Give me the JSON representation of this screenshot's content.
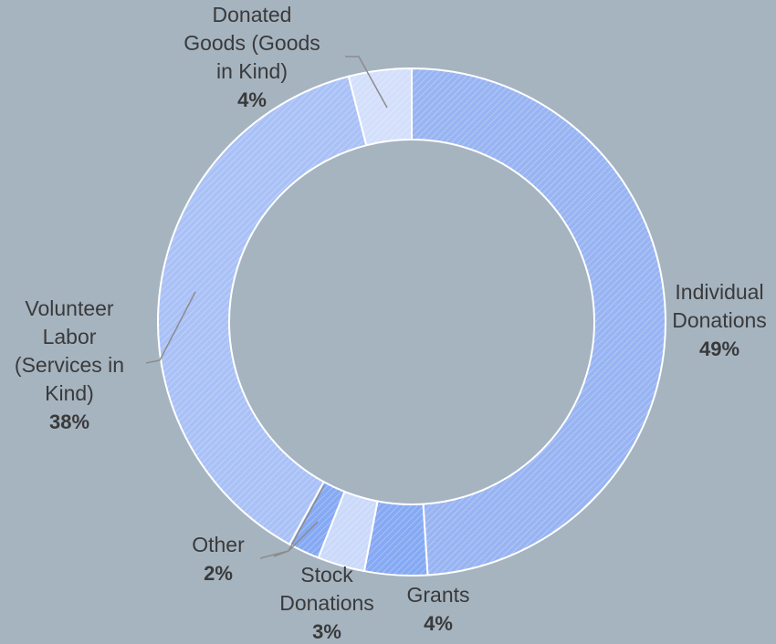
{
  "chart_data": {
    "type": "pie",
    "subtype": "donut",
    "title": "",
    "legend": "none",
    "slices": [
      {
        "label": [
          "Individual",
          "Donations"
        ],
        "percent_label": "49%",
        "value": 49,
        "color": "#98b4f2"
      },
      {
        "label": [
          "Grants"
        ],
        "percent_label": "4%",
        "value": 4,
        "color": "#86a9f4"
      },
      {
        "label": [
          "Stock",
          "Donations"
        ],
        "percent_label": "3%",
        "value": 3,
        "color": "#cbd9fa"
      },
      {
        "label": [
          "Other"
        ],
        "percent_label": "2%",
        "value": 2,
        "color": "#86a9f4"
      },
      {
        "label": [
          "Volunteer",
          "Labor",
          "(Services in",
          "Kind)"
        ],
        "percent_label": "38%",
        "value": 38,
        "color": "#a9c1f6"
      },
      {
        "label": [
          "Donated",
          "Goods (Goods",
          "in Kind)"
        ],
        "percent_label": "4%",
        "value": 4,
        "color": "#d3dffb"
      }
    ],
    "colors": {
      "background": "#a6b4c0",
      "label_text": "#3a3a3a",
      "leader_line": "#8c8c8c",
      "slice_border": "#ffffff"
    }
  }
}
